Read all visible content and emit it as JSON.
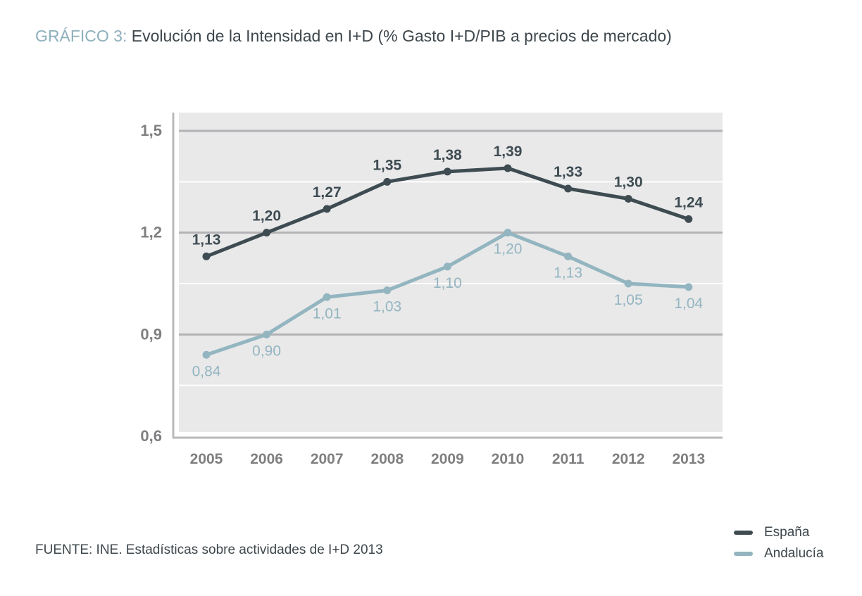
{
  "header": {
    "prefix": "GRÁFICO 3:",
    "title": "Evolución de la Intensidad en I+D (% Gasto I+D/PIB a precios de mercado)"
  },
  "source": "FUENTE: INE. Estadísticas sobre actividades de I+D 2013",
  "colors": {
    "espana": "#3e4c52",
    "andalucia": "#93b5c0",
    "plot_bg": "#e9e9ea",
    "major_grid": "#b3b3b5",
    "axis_text": "#7f7f81"
  },
  "chart_data": {
    "type": "line",
    "title": "Evolución de la Intensidad en I+D (% Gasto I+D/PIB a precios de mercado)",
    "xlabel": "",
    "ylabel": "",
    "categories": [
      "2005",
      "2006",
      "2007",
      "2008",
      "2009",
      "2010",
      "2011",
      "2012",
      "2013"
    ],
    "ylim": [
      0.6,
      1.5
    ],
    "yticks": [
      0.6,
      0.9,
      1.2,
      1.5
    ],
    "ytick_labels": [
      "0,6",
      "0,9",
      "1,2",
      "1,5"
    ],
    "grid": true,
    "legend_position": "bottom-right",
    "series": [
      {
        "name": "España",
        "values": [
          1.13,
          1.2,
          1.27,
          1.35,
          1.38,
          1.39,
          1.33,
          1.3,
          1.24
        ],
        "labels": [
          "1,13",
          "1,20",
          "1,27",
          "1,35",
          "1,38",
          "1,39",
          "1,33",
          "1,30",
          "1,24"
        ],
        "label_position": "above"
      },
      {
        "name": "Andalucía",
        "values": [
          0.84,
          0.9,
          1.01,
          1.03,
          1.1,
          1.2,
          1.13,
          1.05,
          1.04
        ],
        "labels": [
          "0,84",
          "0,90",
          "1,01",
          "1,03",
          "1,10",
          "1,20",
          "1,13",
          "1,05",
          "1,04"
        ],
        "label_position": "below"
      }
    ]
  }
}
